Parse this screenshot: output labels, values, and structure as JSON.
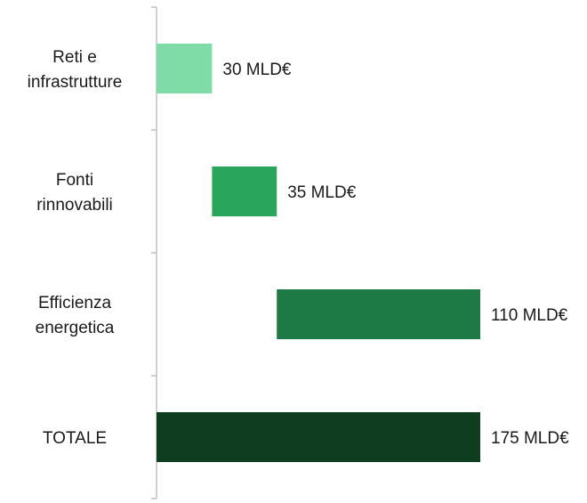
{
  "chart_data": {
    "type": "waterfall",
    "orientation": "horizontal",
    "categories": [
      [
        "Reti e",
        "infrastrutture"
      ],
      [
        "Fonti",
        "rinnovabili"
      ],
      [
        "Efficienza",
        "energetica"
      ],
      [
        "TOTALE"
      ]
    ],
    "values": [
      30,
      35,
      110,
      175
    ],
    "is_total": [
      false,
      false,
      false,
      true
    ],
    "labels": [
      "30 MLD€",
      "35 MLD€",
      "110 MLD€",
      "175 MLD€"
    ],
    "colors": [
      "#7fdca6",
      "#2aa65c",
      "#1e7a45",
      "#0f3d1f"
    ],
    "axis_color": "#bfbfbf",
    "xlim": [
      0,
      175
    ],
    "title": "",
    "xlabel": "",
    "ylabel": ""
  }
}
